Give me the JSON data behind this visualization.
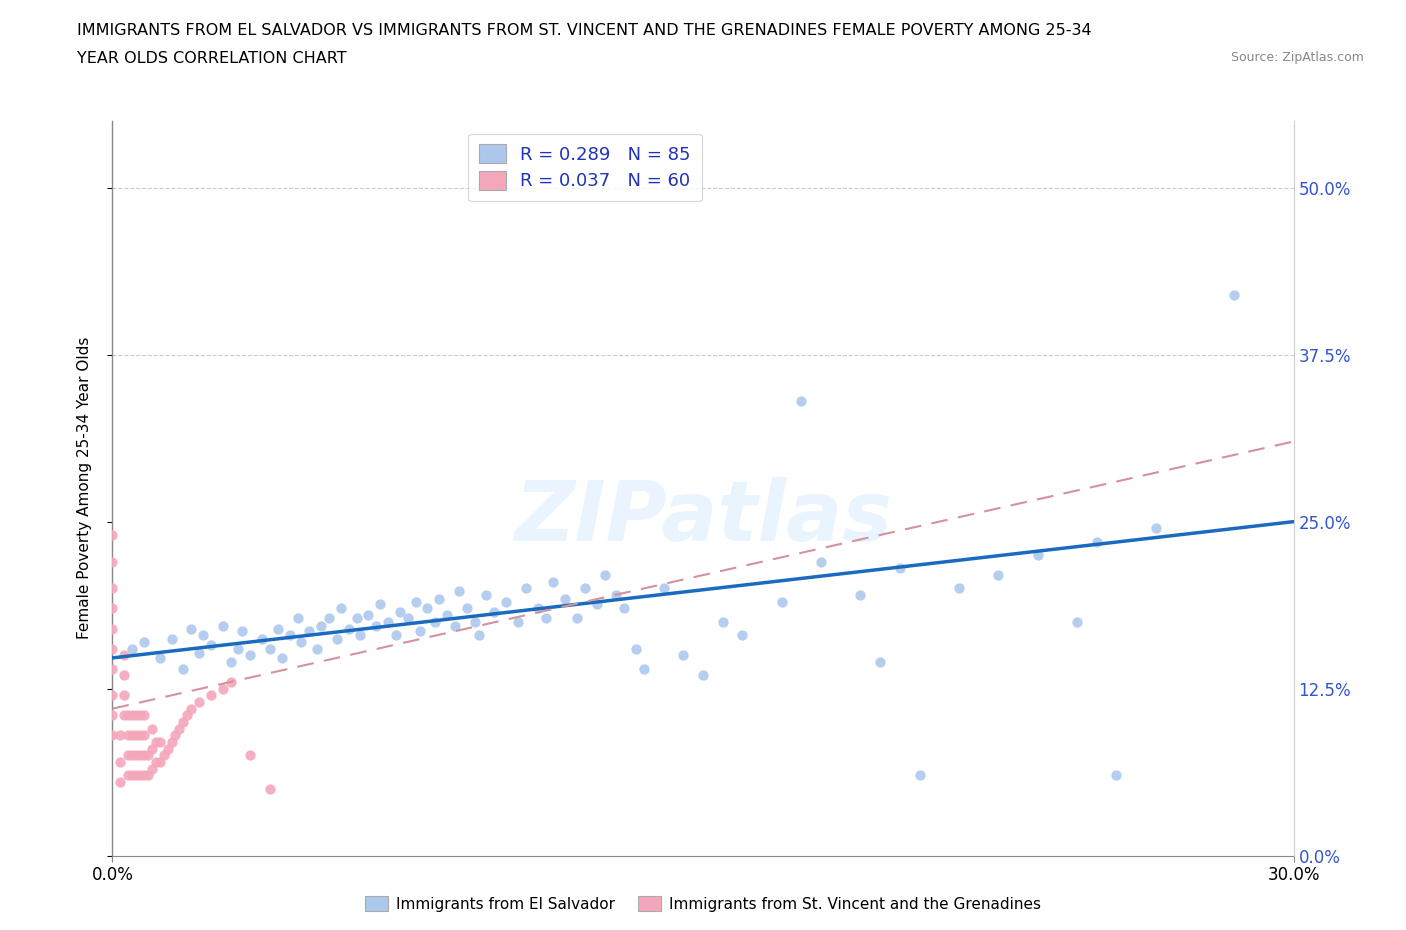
{
  "title_line1": "IMMIGRANTS FROM EL SALVADOR VS IMMIGRANTS FROM ST. VINCENT AND THE GRENADINES FEMALE POVERTY AMONG 25-34",
  "title_line2": "YEAR OLDS CORRELATION CHART",
  "source_text": "Source: ZipAtlas.com",
  "ylabel": "Female Poverty Among 25-34 Year Olds",
  "xlim": [
    0.0,
    0.3
  ],
  "ylim": [
    0.0,
    0.55
  ],
  "yticks": [
    0.0,
    0.125,
    0.25,
    0.375,
    0.5
  ],
  "ytick_labels": [
    "0.0%",
    "12.5%",
    "25.0%",
    "37.5%",
    "50.0%"
  ],
  "R_blue": 0.289,
  "N_blue": 85,
  "R_pink": 0.037,
  "N_pink": 60,
  "blue_color": "#adc8ed",
  "pink_color": "#f4a7bb",
  "trend_blue_color": "#1a6bbf",
  "trend_pink_color": "#d4919e",
  "legend_label_blue": "Immigrants from El Salvador",
  "legend_label_pink": "Immigrants from St. Vincent and the Grenadines",
  "blue_x": [
    0.005,
    0.008,
    0.012,
    0.015,
    0.018,
    0.02,
    0.022,
    0.023,
    0.025,
    0.028,
    0.03,
    0.032,
    0.033,
    0.035,
    0.038,
    0.04,
    0.042,
    0.043,
    0.045,
    0.047,
    0.048,
    0.05,
    0.052,
    0.053,
    0.055,
    0.057,
    0.058,
    0.06,
    0.062,
    0.063,
    0.065,
    0.067,
    0.068,
    0.07,
    0.072,
    0.073,
    0.075,
    0.077,
    0.078,
    0.08,
    0.082,
    0.083,
    0.085,
    0.087,
    0.088,
    0.09,
    0.092,
    0.093,
    0.095,
    0.097,
    0.1,
    0.103,
    0.105,
    0.108,
    0.11,
    0.112,
    0.115,
    0.118,
    0.12,
    0.123,
    0.125,
    0.128,
    0.13,
    0.133,
    0.135,
    0.14,
    0.145,
    0.15,
    0.155,
    0.16,
    0.17,
    0.175,
    0.18,
    0.19,
    0.195,
    0.2,
    0.205,
    0.215,
    0.225,
    0.235,
    0.245,
    0.25,
    0.255,
    0.265,
    0.285
  ],
  "blue_y": [
    0.155,
    0.16,
    0.148,
    0.162,
    0.14,
    0.17,
    0.152,
    0.165,
    0.158,
    0.172,
    0.145,
    0.155,
    0.168,
    0.15,
    0.162,
    0.155,
    0.17,
    0.148,
    0.165,
    0.178,
    0.16,
    0.168,
    0.155,
    0.172,
    0.178,
    0.162,
    0.185,
    0.17,
    0.178,
    0.165,
    0.18,
    0.172,
    0.188,
    0.175,
    0.165,
    0.182,
    0.178,
    0.19,
    0.168,
    0.185,
    0.175,
    0.192,
    0.18,
    0.172,
    0.198,
    0.185,
    0.175,
    0.165,
    0.195,
    0.182,
    0.19,
    0.175,
    0.2,
    0.185,
    0.178,
    0.205,
    0.192,
    0.178,
    0.2,
    0.188,
    0.21,
    0.195,
    0.185,
    0.155,
    0.14,
    0.2,
    0.15,
    0.135,
    0.175,
    0.165,
    0.19,
    0.34,
    0.22,
    0.195,
    0.145,
    0.215,
    0.06,
    0.2,
    0.21,
    0.225,
    0.175,
    0.235,
    0.06,
    0.245,
    0.42
  ],
  "pink_x": [
    0.0,
    0.0,
    0.0,
    0.0,
    0.0,
    0.0,
    0.0,
    0.0,
    0.0,
    0.0,
    0.002,
    0.002,
    0.002,
    0.003,
    0.003,
    0.003,
    0.003,
    0.004,
    0.004,
    0.004,
    0.004,
    0.005,
    0.005,
    0.005,
    0.005,
    0.006,
    0.006,
    0.006,
    0.006,
    0.007,
    0.007,
    0.007,
    0.007,
    0.008,
    0.008,
    0.008,
    0.008,
    0.009,
    0.009,
    0.01,
    0.01,
    0.01,
    0.011,
    0.011,
    0.012,
    0.012,
    0.013,
    0.014,
    0.015,
    0.016,
    0.017,
    0.018,
    0.019,
    0.02,
    0.022,
    0.025,
    0.028,
    0.03,
    0.035,
    0.04
  ],
  "pink_y": [
    0.09,
    0.105,
    0.12,
    0.14,
    0.155,
    0.17,
    0.185,
    0.2,
    0.22,
    0.24,
    0.055,
    0.07,
    0.09,
    0.105,
    0.12,
    0.135,
    0.15,
    0.06,
    0.075,
    0.09,
    0.105,
    0.06,
    0.075,
    0.09,
    0.105,
    0.06,
    0.075,
    0.09,
    0.105,
    0.06,
    0.075,
    0.09,
    0.105,
    0.06,
    0.075,
    0.09,
    0.105,
    0.06,
    0.075,
    0.065,
    0.08,
    0.095,
    0.07,
    0.085,
    0.07,
    0.085,
    0.075,
    0.08,
    0.085,
    0.09,
    0.095,
    0.1,
    0.105,
    0.11,
    0.115,
    0.12,
    0.125,
    0.13,
    0.075,
    0.05
  ],
  "trend_blue_x0": 0.0,
  "trend_blue_y0": 0.148,
  "trend_blue_x1": 0.3,
  "trend_blue_y1": 0.25,
  "trend_pink_x0": 0.0,
  "trend_pink_y0": 0.11,
  "trend_pink_x1": 0.3,
  "trend_pink_y1": 0.31
}
